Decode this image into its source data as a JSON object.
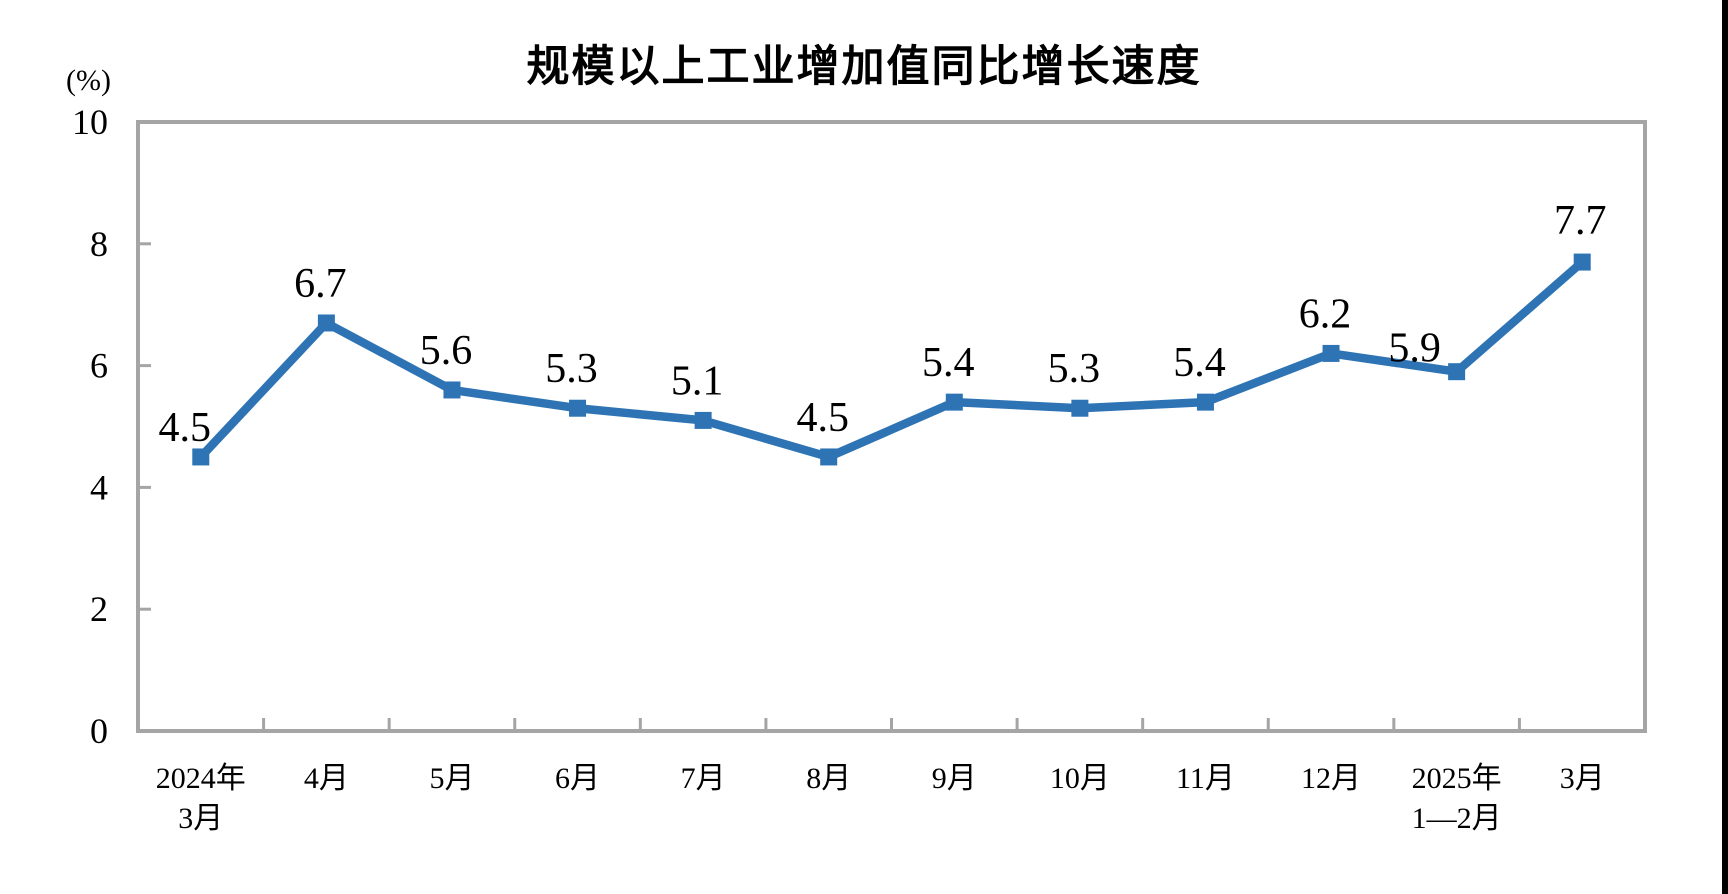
{
  "title": "规模以上工业增加值同比增长速度",
  "y_axis_unit": "(%)",
  "chart_data": {
    "type": "line",
    "title": "规模以上工业增加值同比增长速度",
    "ylabel": "(%)",
    "xlabel": "",
    "ylim": [
      0,
      10
    ],
    "yticks": [
      0,
      2,
      4,
      6,
      8,
      10
    ],
    "grid": false,
    "legend_position": "none",
    "marker": "square",
    "categories": [
      [
        "2024年",
        "3月"
      ],
      [
        "4月"
      ],
      [
        "5月"
      ],
      [
        "6月"
      ],
      [
        "7月"
      ],
      [
        "8月"
      ],
      [
        "9月"
      ],
      [
        "10月"
      ],
      [
        "11月"
      ],
      [
        "12月"
      ],
      [
        "2025年",
        "1—2月"
      ],
      [
        "3月"
      ]
    ],
    "values": [
      4.5,
      6.7,
      5.6,
      5.3,
      5.1,
      4.5,
      5.4,
      5.3,
      5.4,
      6.2,
      5.9,
      7.7
    ],
    "data_labels": [
      "4.5",
      "6.7",
      "5.6",
      "5.3",
      "5.1",
      "4.5",
      "5.4",
      "5.3",
      "5.4",
      "6.2",
      "5.9",
      "7.7"
    ],
    "colors": {
      "line": "#2E74B5",
      "marker": "#2E74B5",
      "axis_border": "#A5A5A5",
      "text": "#000000"
    }
  }
}
